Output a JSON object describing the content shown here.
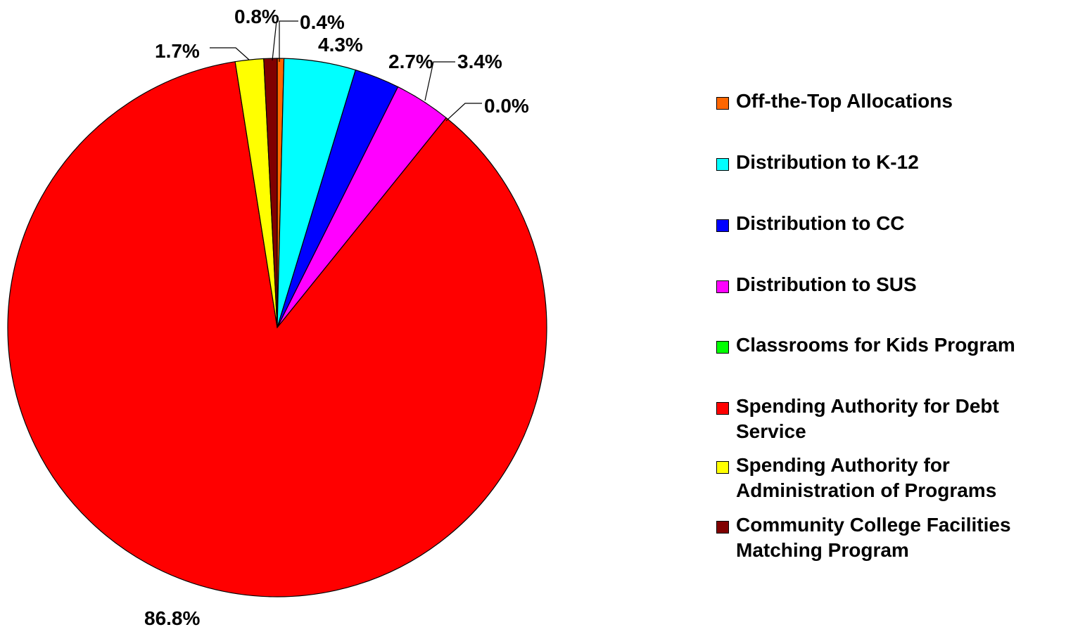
{
  "chart_data": {
    "type": "pie",
    "slices": [
      {
        "label": "Off-the-Top Allocations",
        "value": 0.4,
        "display": "0.4%",
        "color": "#FF6600"
      },
      {
        "label": "Distribution to K-12",
        "value": 4.3,
        "display": "4.3%",
        "color": "#00FFFF"
      },
      {
        "label": "Distribution to CC",
        "value": 2.7,
        "display": "2.7%",
        "color": "#0000FF"
      },
      {
        "label": "Distribution to SUS",
        "value": 3.4,
        "display": "3.4%",
        "color": "#FF00FF"
      },
      {
        "label": "Classrooms for Kids Program",
        "value": 0.0,
        "display": "0.0%",
        "color": "#00FF00"
      },
      {
        "label": "Spending Authority for Debt Service",
        "value": 86.8,
        "display": "86.8%",
        "color": "#FF0000"
      },
      {
        "label": "Spending Authority for Administration of Programs",
        "value": 1.7,
        "display": "1.7%",
        "color": "#FFFF00"
      },
      {
        "label": "Community College Facilities Matching Program",
        "value": 0.8,
        "display": "0.8%",
        "color": "#800000"
      }
    ],
    "legend_position": "right"
  },
  "legend": {
    "items": [
      {
        "text": "Off-the-Top Allocations",
        "color": "#FF6600"
      },
      {
        "text": "Distribution to K-12",
        "color": "#00FFFF"
      },
      {
        "text": "Distribution to CC",
        "color": "#0000FF"
      },
      {
        "text": "Distribution to SUS",
        "color": "#FF00FF"
      },
      {
        "text": "Classrooms for Kids Program",
        "color": "#00FF00"
      },
      {
        "text": "Spending Authority for Debt\nService",
        "color": "#FF0000"
      },
      {
        "text": "Spending Authority for\nAdministration of Programs",
        "color": "#FFFF00"
      },
      {
        "text": "Community College Facilities\nMatching Program",
        "color": "#800000"
      }
    ]
  }
}
